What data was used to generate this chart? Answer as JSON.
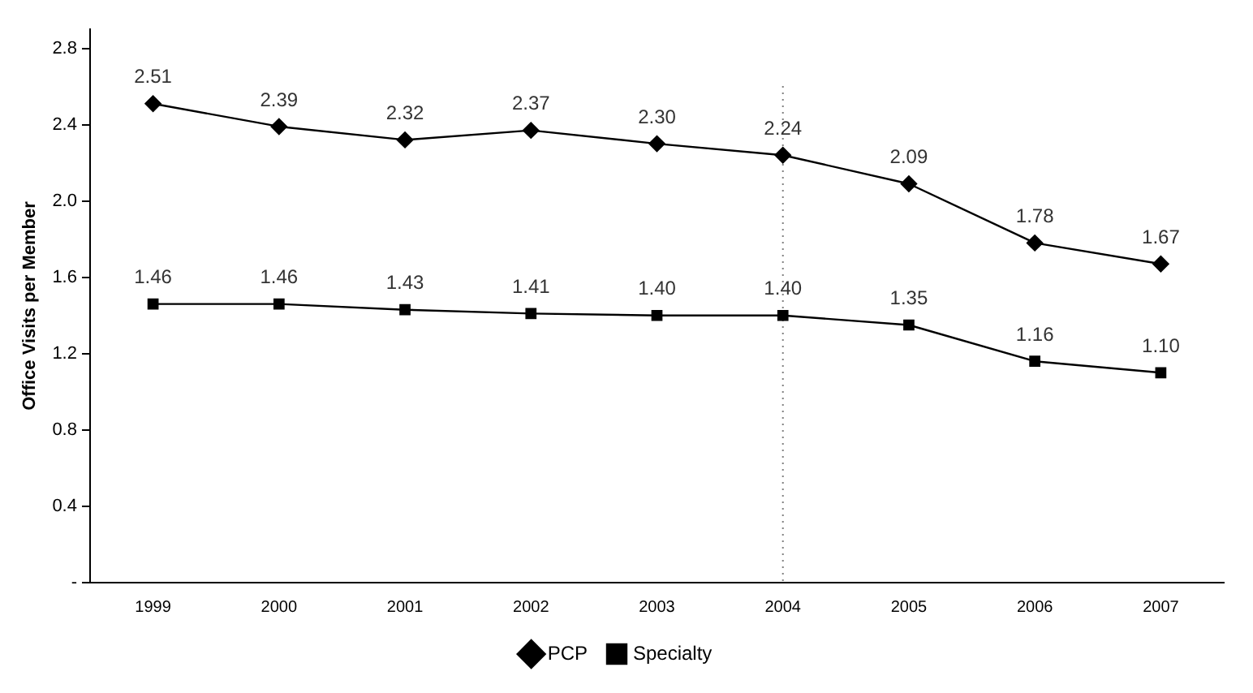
{
  "chart_data": {
    "type": "line",
    "ylabel": "Office Visits per Member",
    "categories": [
      "1999",
      "2000",
      "2001",
      "2002",
      "2003",
      "2004",
      "2005",
      "2006",
      "2007"
    ],
    "series": [
      {
        "name": "PCP",
        "color": "#000000",
        "marker": "diamond",
        "values": [
          2.51,
          2.39,
          2.32,
          2.37,
          2.3,
          2.24,
          2.09,
          1.78,
          1.67
        ],
        "value_labels": [
          "2.51",
          "2.39",
          "2.32",
          "2.37",
          "2.30",
          "2.24",
          "2.09",
          "1.78",
          "1.67"
        ]
      },
      {
        "name": "Specialty",
        "color": "#000000",
        "marker": "square",
        "values": [
          1.46,
          1.46,
          1.43,
          1.41,
          1.4,
          1.4,
          1.35,
          1.16,
          1.1
        ],
        "value_labels": [
          "1.46",
          "1.46",
          "1.43",
          "1.41",
          "1.40",
          "1.40",
          "1.35",
          "1.16",
          "1.10"
        ]
      }
    ],
    "ylim": [
      0,
      2.9
    ],
    "yticks": [
      {
        "value": 0,
        "label": "-"
      },
      0.4,
      0.8,
      1.2,
      1.6,
      {
        "value": 2,
        "label": "2.0"
      },
      2.4,
      2.8
    ],
    "ref_lines": [
      {
        "axis": "x",
        "value": "2004",
        "line_style": "dotted",
        "color": "#808080"
      }
    ],
    "legend": "bottom",
    "grid": false,
    "line_style": "solid"
  }
}
